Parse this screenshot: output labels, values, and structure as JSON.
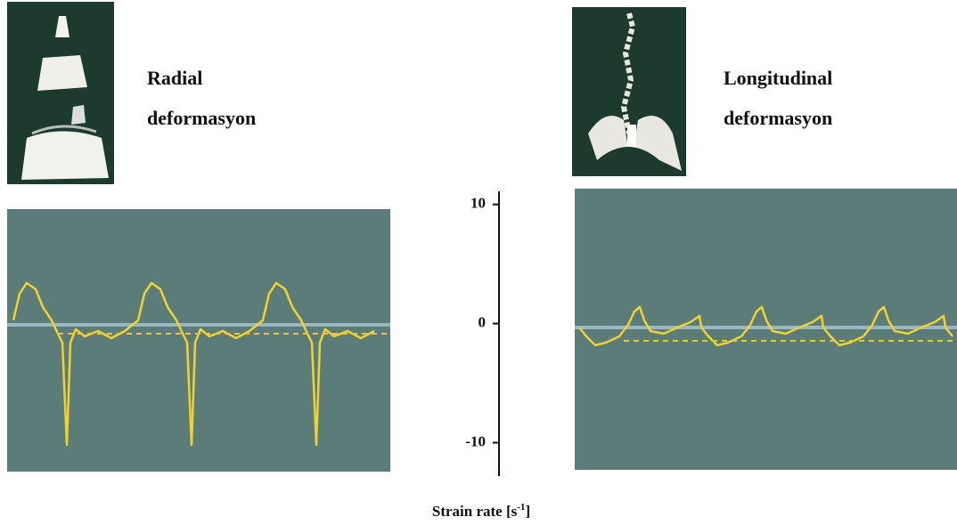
{
  "left": {
    "title_line1": "Radial",
    "title_line2": "deformasyon"
  },
  "right": {
    "title_line1": "Longitudinal",
    "title_line2": "deformasyon"
  },
  "axis": {
    "ylim": [
      -12.8,
      11.1
    ],
    "yticks": [
      10,
      0,
      -10
    ],
    "label": "Strain rate [s",
    "label_sup": "-1",
    "label_end": "]"
  }
}
